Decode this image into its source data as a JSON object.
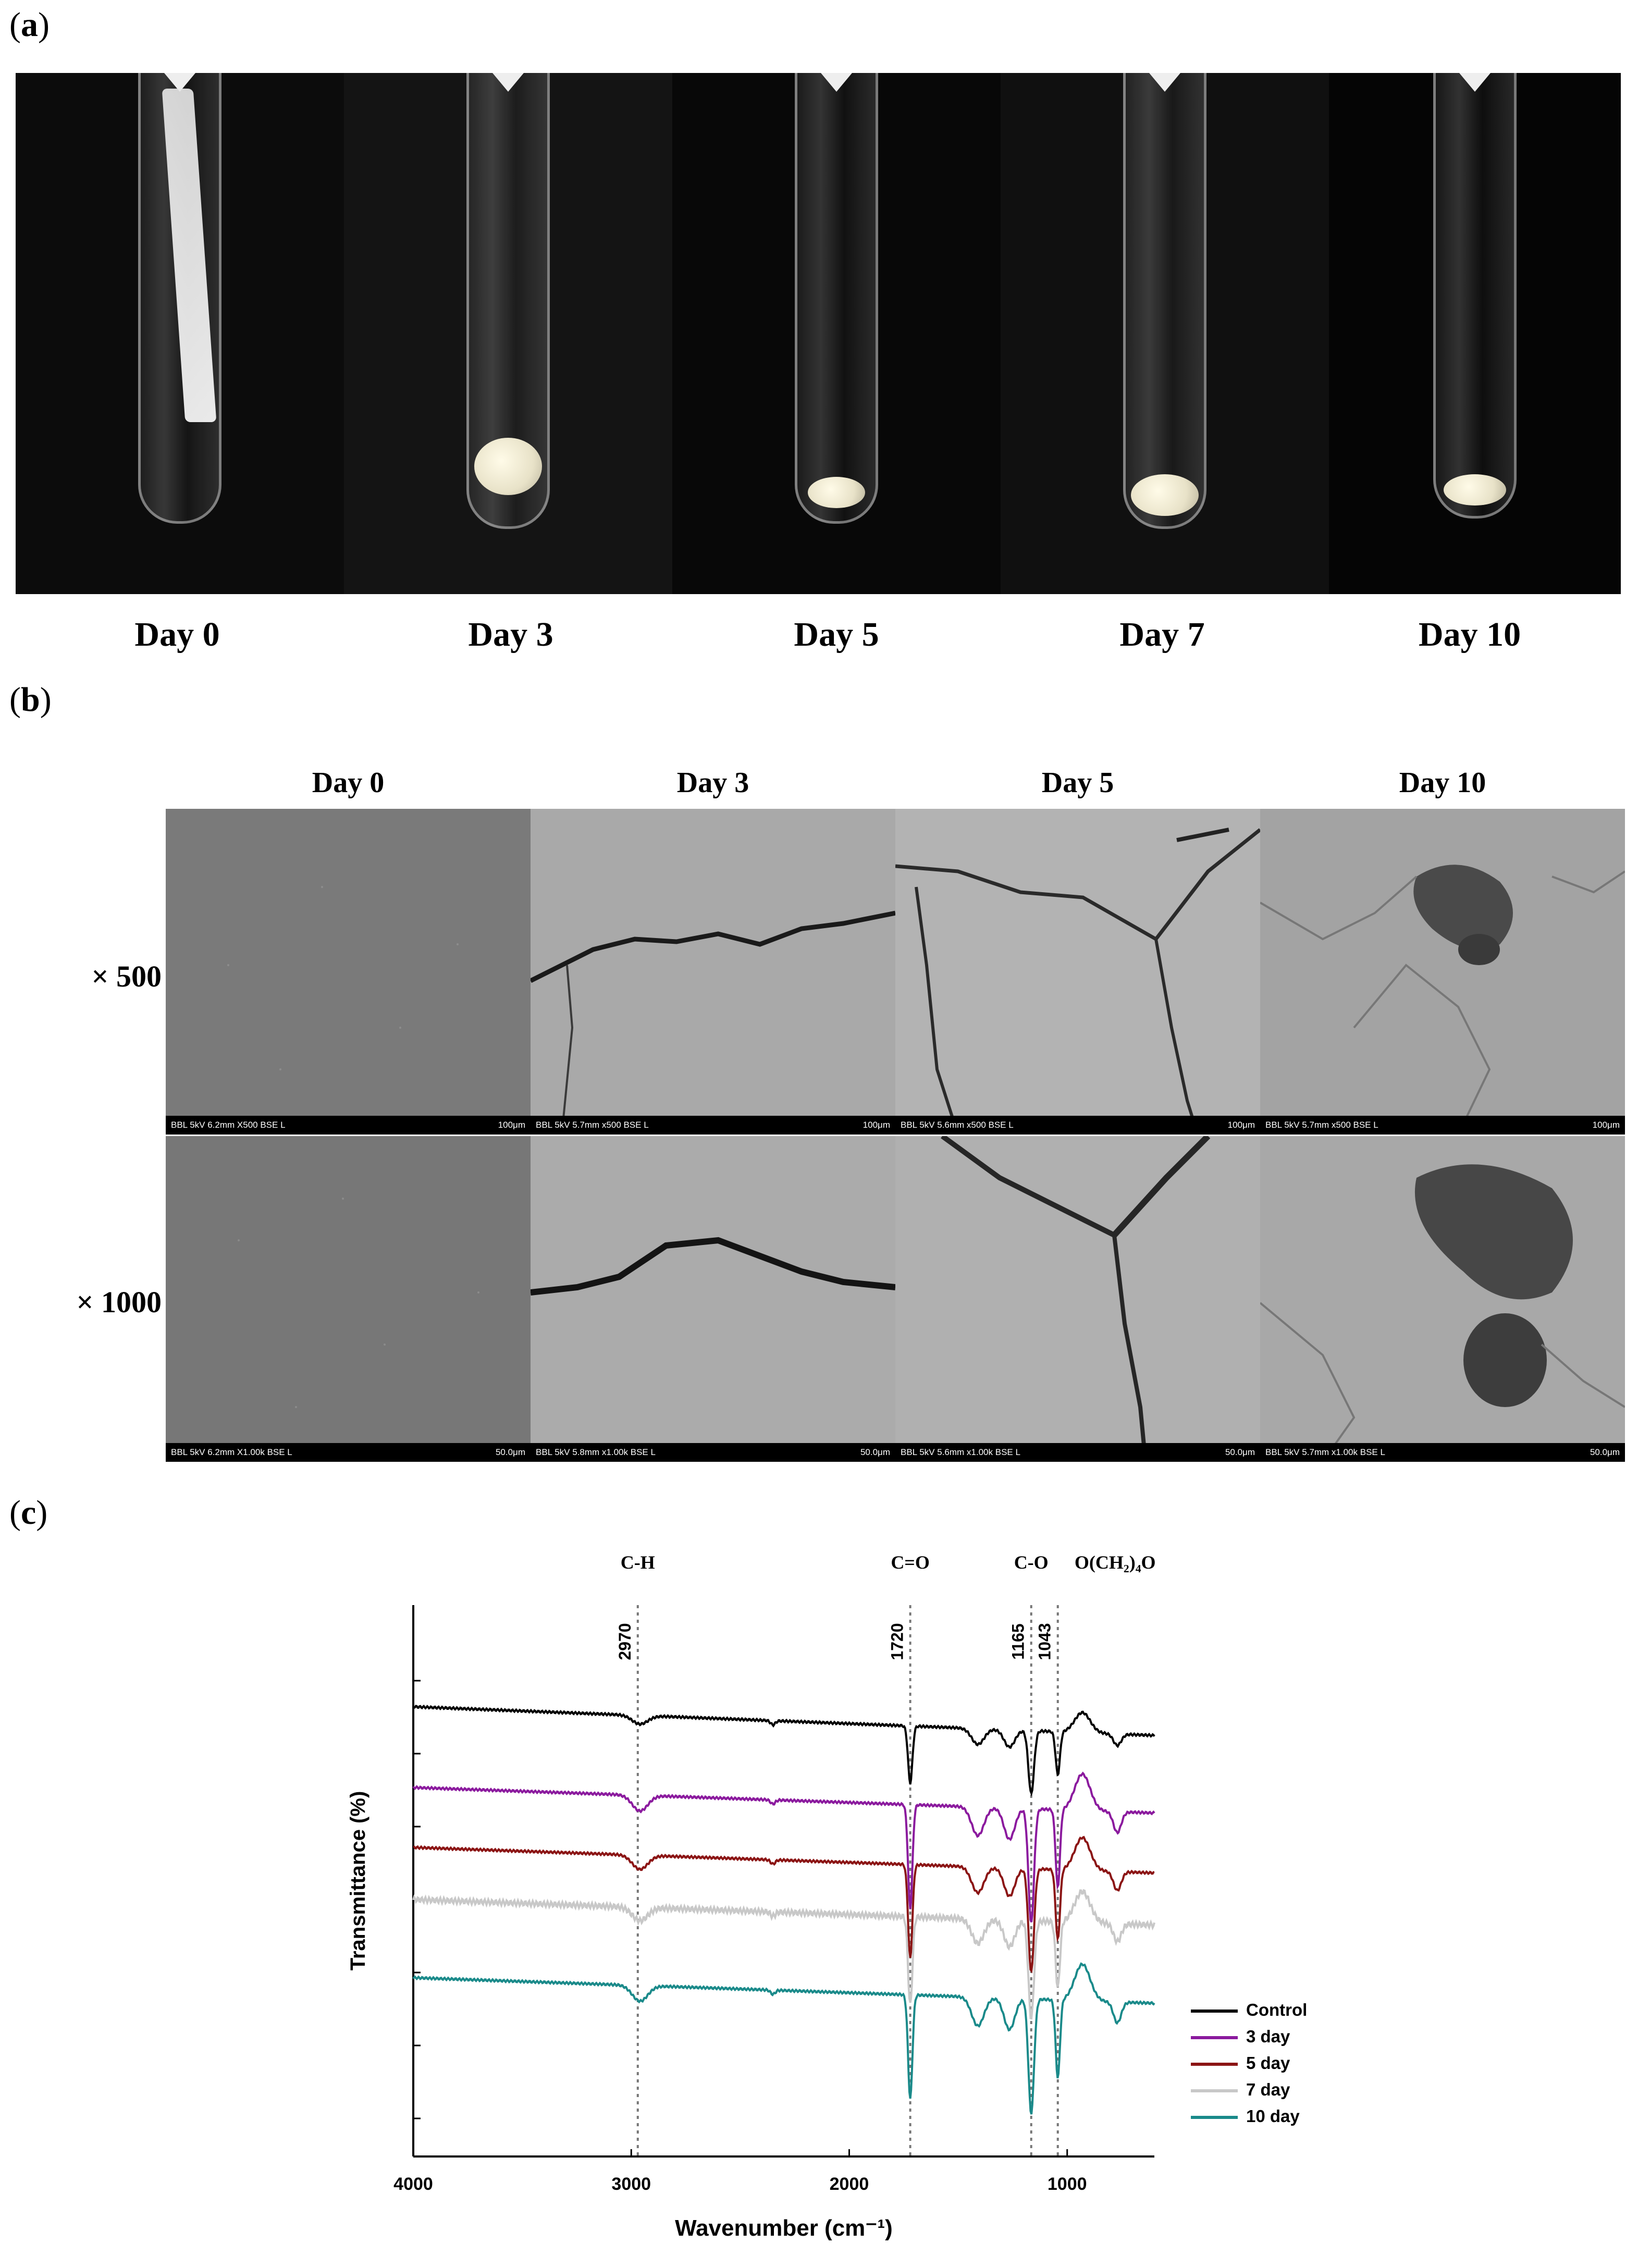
{
  "panels": {
    "a": {
      "label": "(a)",
      "letter": "a",
      "days": [
        "Day 0",
        "Day 3",
        "Day 5",
        "Day 7",
        "Day 10"
      ]
    },
    "b": {
      "label": "(b)",
      "letter": "b",
      "columns": [
        "Day 0",
        "Day 3",
        "Day 5",
        "Day 10"
      ],
      "rows": [
        "× 500",
        "× 1000"
      ],
      "scale_bars": [
        [
          "BBL 5kV 6.2mm X500 BSE L",
          "BBL 5kV 5.7mm x500 BSE L",
          "BBL 5kV 5.6mm x500 BSE L",
          "BBL 5kV 5.7mm x500 BSE L"
        ],
        [
          "BBL 5kV 6.2mm X1.00k BSE L",
          "BBL 5kV 5.8mm x1.00k BSE L",
          "BBL 5kV 5.6mm x1.00k BSE L",
          "BBL 5kV 5.7mm x1.00k BSE L"
        ]
      ],
      "scale_values": [
        "100μm",
        "50.0μm"
      ]
    },
    "c": {
      "label": "(c)",
      "letter": "c"
    }
  },
  "chart_data": {
    "type": "line",
    "xlabel": "Wavenumber (cm⁻¹)",
    "ylabel": "Transmittance (%)",
    "xlim": [
      4000,
      600
    ],
    "x_ticks": [
      4000,
      3000,
      2000,
      1000
    ],
    "x_reversed": true,
    "y_ticks_labeled": false,
    "annotations": [
      {
        "group": "C-H",
        "wavenumber": 2970,
        "label": "2970"
      },
      {
        "group": "C=O",
        "wavenumber": 1720,
        "label": "1720"
      },
      {
        "group": "C-O",
        "wavenumber": 1165,
        "label": "1165"
      },
      {
        "group": "O(CH₂)₄O",
        "wavenumber": 1043,
        "label": "1043"
      }
    ],
    "legend_position": "right",
    "series": [
      {
        "name": "Control",
        "color": "#000000"
      },
      {
        "name": "3 day",
        "color": "#8b1a9e"
      },
      {
        "name": "5 day",
        "color": "#8b1414"
      },
      {
        "name": "7 day",
        "color": "#c8c8c8"
      },
      {
        "name": "10 day",
        "color": "#1a8a8a"
      }
    ]
  }
}
